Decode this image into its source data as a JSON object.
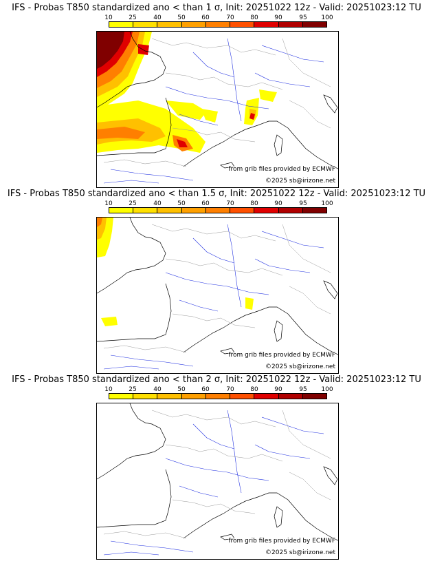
{
  "colorbar": {
    "ticks": [
      "10",
      "25",
      "40",
      "50",
      "60",
      "70",
      "80",
      "90",
      "95",
      "100"
    ],
    "colors": [
      "#ffff00",
      "#ffe000",
      "#ffc000",
      "#ffa000",
      "#ff7f00",
      "#ff5000",
      "#e00000",
      "#b00000",
      "#800000"
    ]
  },
  "panels": [
    {
      "title": "IFS - Probas T850  standardized ano < than 1 σ, Init: 20251022 12z - Valid: 20251023:12 TU",
      "credit_data": "from grib files provided by ECMWF",
      "credit_copyright": "©2025 sb@irizone.net"
    },
    {
      "title": "IFS - Probas T850  standardized ano < than 1.5 σ, Init: 20251022 12z - Valid: 20251023:12 TU",
      "credit_data": "from grib files provided by ECMWF",
      "credit_copyright": "©2025 sb@irizone.net"
    },
    {
      "title": "IFS - Probas T850  standardized ano < than 2 σ, Init: 20251022 12z - Valid: 20251023:12 TU",
      "credit_data": "from grib files provided by ECMWF",
      "credit_copyright": "©2025 sb@irizone.net"
    }
  ]
}
